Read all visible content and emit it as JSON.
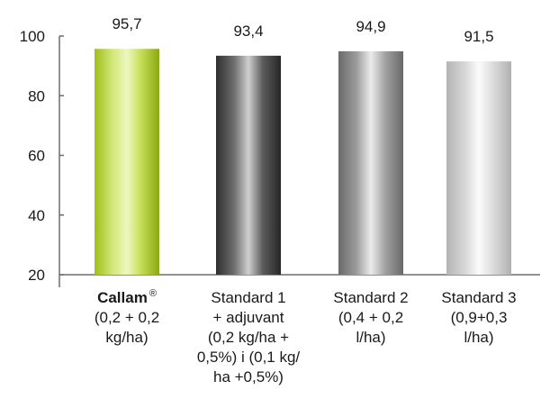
{
  "chart_data": {
    "type": "bar",
    "title": "",
    "xlabel": "",
    "ylabel": "",
    "ylim": [
      20,
      100
    ],
    "yticks": [
      "20",
      "40",
      "60",
      "80",
      "100"
    ],
    "grid": false,
    "legend": "none",
    "categories": [
      {
        "lines": [
          {
            "text": "Callam",
            "bold": true,
            "sup": "®"
          },
          {
            "text": "(0,2 + 0,2"
          },
          {
            "text": "kg/ha)"
          }
        ],
        "value": 95.7,
        "value_label": "95,7",
        "style": "green"
      },
      {
        "lines": [
          {
            "text": "Standard 1"
          },
          {
            "text": "+ adjuvant"
          },
          {
            "text": "(0,2 kg/ha +"
          },
          {
            "text": "0,5%) i (0,1 kg/"
          },
          {
            "text": "ha +0,5%)"
          }
        ],
        "value": 93.4,
        "value_label": "93,4",
        "style": "dark"
      },
      {
        "lines": [
          {
            "text": "Standard 2"
          },
          {
            "text": "(0,4 + 0,2"
          },
          {
            "text": "l/ha)"
          }
        ],
        "value": 94.9,
        "value_label": "94,9",
        "style": "mid"
      },
      {
        "lines": [
          {
            "text": "Standard 3"
          },
          {
            "text": "(0,9+0,3"
          },
          {
            "text": "l/ha)"
          }
        ],
        "value": 91.5,
        "value_label": "91,5",
        "style": "light"
      }
    ],
    "colors": {
      "green": [
        "#9fbd1a",
        "#d2e878",
        "#eef7c0",
        "#c4dd55",
        "#8aa812"
      ],
      "dark": [
        "#2e2e2e",
        "#6e6e6e",
        "#cfcfcf",
        "#5c5c5c",
        "#262626"
      ],
      "mid": [
        "#6a6a6a",
        "#9c9c9c",
        "#ececec",
        "#a2a2a2",
        "#686868"
      ],
      "light": [
        "#b4b4b4",
        "#d6d6d6",
        "#fbfbfb",
        "#dcdcdc",
        "#b0b0b0"
      ]
    }
  }
}
